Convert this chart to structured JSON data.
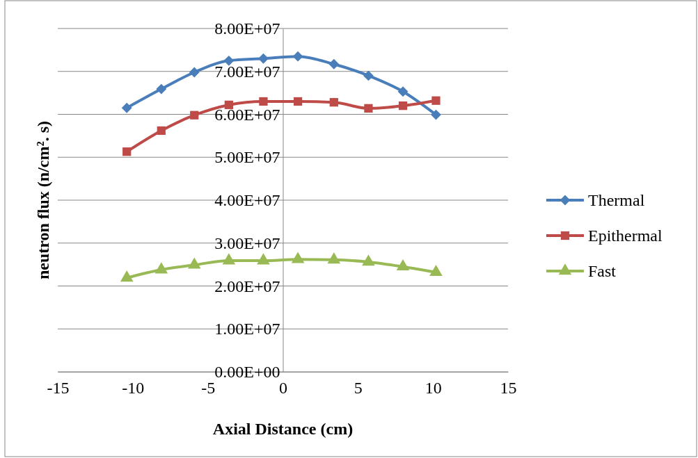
{
  "chart_data": {
    "type": "line",
    "xlabel": "Axial Distance (cm)",
    "ylabel": "neutron flux (n/cm². s)",
    "x": [
      -10.4,
      -8.1,
      -5.9,
      -3.6,
      -1.3,
      1.0,
      3.4,
      5.7,
      8.0,
      10.2
    ],
    "series": [
      {
        "name": "Thermal",
        "color": "#4a7ebb",
        "marker": "diamond",
        "values": [
          61500000.0,
          65900000.0,
          69800000.0,
          72500000.0,
          73000000.0,
          73500000.0,
          71700000.0,
          69000000.0,
          65300000.0,
          59900000.0
        ]
      },
      {
        "name": "Epithermal",
        "color": "#be4b48",
        "marker": "square",
        "values": [
          51300000.0,
          56200000.0,
          59800000.0,
          62200000.0,
          63000000.0,
          63000000.0,
          62800000.0,
          61400000.0,
          62000000.0,
          63200000.0
        ]
      },
      {
        "name": "Fast",
        "color": "#98b954",
        "marker": "triangle",
        "values": [
          21900000.0,
          23800000.0,
          24900000.0,
          25900000.0,
          25900000.0,
          26200000.0,
          26100000.0,
          25600000.0,
          24500000.0,
          23200000.0
        ]
      }
    ],
    "xlim": [
      -15,
      15
    ],
    "xticks": [
      -15,
      -10,
      -5,
      0,
      5,
      10,
      15
    ],
    "ylim": [
      0,
      80000000.0
    ],
    "yticks": [
      {
        "value": 0,
        "label": "0.00E+00"
      },
      {
        "value": 10000000.0,
        "label": "1.00E+07"
      },
      {
        "value": 20000000.0,
        "label": "2.00E+07"
      },
      {
        "value": 30000000.0,
        "label": "3.00E+07"
      },
      {
        "value": 40000000.0,
        "label": "4.00E+07"
      },
      {
        "value": 50000000.0,
        "label": "5.00E+07"
      },
      {
        "value": 60000000.0,
        "label": "6.00E+07"
      },
      {
        "value": 70000000.0,
        "label": "7.00E+07"
      },
      {
        "value": 80000000.0,
        "label": "8.00E+07"
      }
    ],
    "grid": "y",
    "legend": "right"
  }
}
